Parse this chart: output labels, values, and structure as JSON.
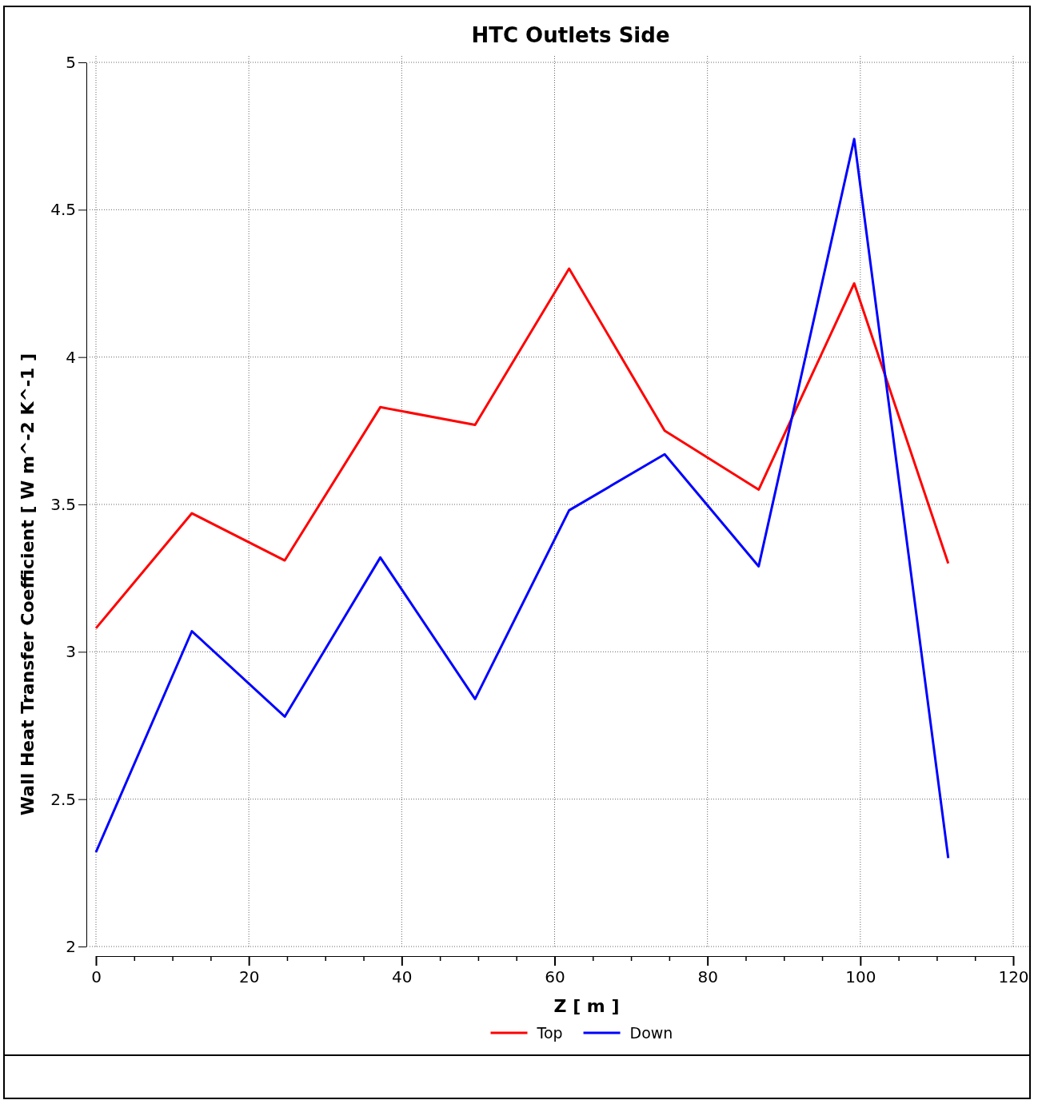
{
  "chart_data": {
    "type": "line",
    "title": "HTC Outlets Side",
    "xlabel": "Z [ m ]",
    "ylabel": "Wall Heat Transfer Coefficient [ W m^-2 K^-1 ]",
    "x": [
      0,
      12.55,
      24.7,
      37.2,
      49.6,
      61.9,
      74.4,
      86.7,
      99.2,
      111.5
    ],
    "series": [
      {
        "name": "Top",
        "color": "#ff0000",
        "values": [
          3.08,
          3.47,
          3.31,
          3.83,
          3.77,
          4.3,
          3.75,
          3.55,
          4.25,
          3.3
        ]
      },
      {
        "name": "Down",
        "color": "#0000ff",
        "values": [
          2.32,
          3.07,
          2.78,
          3.32,
          2.84,
          3.48,
          3.67,
          3.29,
          4.74,
          2.3
        ]
      }
    ],
    "xlim": [
      0,
      120
    ],
    "xticks": [
      0,
      {
        "value": 5,
        "label": null
      },
      {
        "value": 10,
        "label": null
      },
      {
        "value": 15,
        "label": null
      },
      20,
      {
        "value": 25,
        "label": null
      },
      {
        "value": 30,
        "label": null
      },
      {
        "value": 35,
        "label": null
      },
      40,
      {
        "value": 45,
        "label": null
      },
      {
        "value": 50,
        "label": null
      },
      {
        "value": 55,
        "label": null
      },
      60,
      {
        "value": 65,
        "label": null
      },
      {
        "value": 70,
        "label": null
      },
      {
        "value": 75,
        "label": null
      },
      80,
      {
        "value": 85,
        "label": null
      },
      {
        "value": 90,
        "label": null
      },
      {
        "value": 95,
        "label": null
      },
      100,
      {
        "value": 105,
        "label": null
      },
      {
        "value": 110,
        "label": null
      },
      {
        "value": 115,
        "label": null
      },
      120
    ],
    "ylim": [
      2,
      5
    ],
    "yticks": [
      2,
      2.5,
      3,
      3.5,
      4,
      4.5,
      5
    ],
    "grid": true,
    "legend": "bottom",
    "marker": "none",
    "line_style": "solid"
  }
}
